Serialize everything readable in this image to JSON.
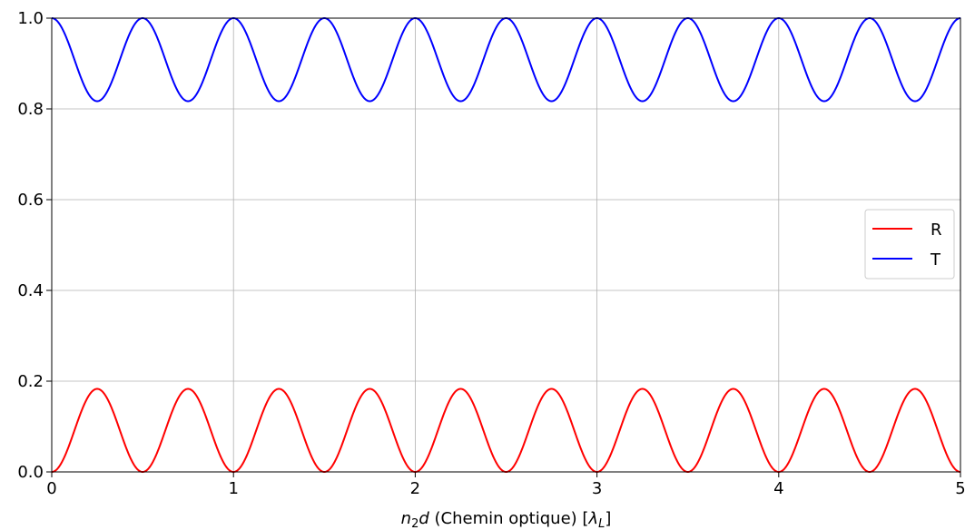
{
  "chart_data": {
    "type": "line",
    "title": "",
    "xlabel_parts": {
      "n": "n",
      "n_sub": "2",
      "d": "d",
      "middle": " (Chemin optique) [",
      "lambda": "λ",
      "lambda_sub": "L",
      "end": "]"
    },
    "ylabel": "",
    "xlim": [
      0,
      5
    ],
    "ylim": [
      0,
      1
    ],
    "xticks": [
      0,
      1,
      2,
      3,
      4,
      5
    ],
    "xtick_labels": [
      "0",
      "1",
      "2",
      "3",
      "4",
      "5"
    ],
    "yticks": [
      0.0,
      0.2,
      0.4,
      0.6,
      0.8,
      1.0
    ],
    "ytick_labels": [
      "0.0",
      "0.2",
      "0.4",
      "0.6",
      "0.8",
      "1.0"
    ],
    "grid": true,
    "legend_position": "center-right",
    "model": "R(x) = Rmax * sin^2(2*pi*x); T = 1 - R",
    "series": [
      {
        "name": "R",
        "color": "#ff0000",
        "formula": "reflectance",
        "peak": 0.183,
        "period": 0.5,
        "minima_x": [
          0,
          0.5,
          1,
          1.5,
          2,
          2.5,
          3,
          3.5,
          4,
          4.5,
          5
        ],
        "maxima_x": [
          0.25,
          0.75,
          1.25,
          1.75,
          2.25,
          2.75,
          3.25,
          3.75,
          4.25,
          4.75
        ]
      },
      {
        "name": "T",
        "color": "#0000ff",
        "formula": "transmittance",
        "trough": 0.817,
        "period": 0.5,
        "maxima_x": [
          0,
          0.5,
          1,
          1.5,
          2,
          2.5,
          3,
          3.5,
          4,
          4.5,
          5
        ],
        "minima_x": [
          0.25,
          0.75,
          1.25,
          1.75,
          2.25,
          2.75,
          3.25,
          3.75,
          4.25,
          4.75
        ]
      }
    ]
  }
}
